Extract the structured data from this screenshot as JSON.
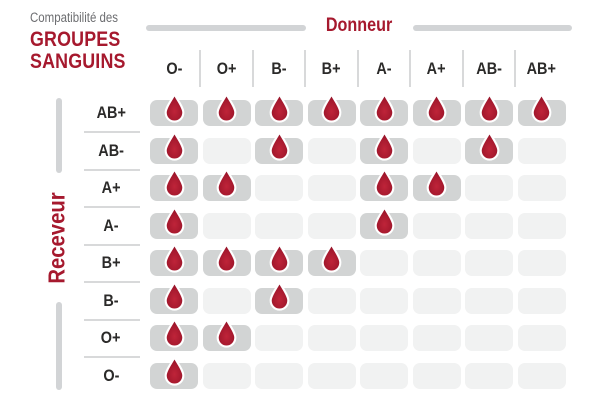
{
  "title": {
    "eyebrow": "Compatibilité des",
    "line1": "GROUPES",
    "line2": "SANGUINS"
  },
  "donor_axis": {
    "label": "Donneur"
  },
  "recipient_axis": {
    "label": "Receveur"
  },
  "chart_data": {
    "type": "heatmap",
    "title": "Compatibilité des GROUPES SANGUINS",
    "columns_axis_label": "Donneur",
    "rows_axis_label": "Receveur",
    "columns": [
      "O-",
      "O+",
      "B-",
      "B+",
      "A-",
      "A+",
      "AB-",
      "AB+"
    ],
    "rows": [
      "AB+",
      "AB-",
      "A+",
      "A-",
      "B+",
      "B-",
      "O+",
      "O-"
    ],
    "matrix": [
      [
        1,
        1,
        1,
        1,
        1,
        1,
        1,
        1
      ],
      [
        1,
        0,
        1,
        0,
        1,
        0,
        1,
        0
      ],
      [
        1,
        1,
        0,
        0,
        1,
        1,
        0,
        0
      ],
      [
        1,
        0,
        0,
        0,
        1,
        0,
        0,
        0
      ],
      [
        1,
        1,
        1,
        1,
        0,
        0,
        0,
        0
      ],
      [
        1,
        0,
        1,
        0,
        0,
        0,
        0,
        0
      ],
      [
        1,
        1,
        0,
        0,
        0,
        0,
        0,
        0
      ],
      [
        1,
        0,
        0,
        0,
        0,
        0,
        0,
        0
      ]
    ],
    "cell_true_marker": "blood-drop-icon",
    "cell_false_marker": "empty-cell",
    "legend_position": "none",
    "grid": "off"
  },
  "colors": {
    "brand_red": "#A6192E",
    "eyebrow_gray": "#6D6E71",
    "label_dark": "#2B2A29",
    "cell_compatible_bg": "#D2D4D4",
    "cell_incompatible_bg": "#F1F2F2",
    "divider_gray": "#D8D9DA",
    "axis_line_gray": "#D2D4D6",
    "drop_center": "#BF2439",
    "drop_main": "#A6192E",
    "drop_edge": "#8E1126",
    "drop_stroke": "#FFFFFF"
  }
}
